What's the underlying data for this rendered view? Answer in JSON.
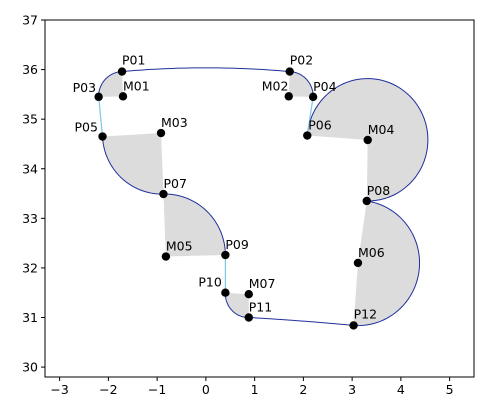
{
  "chart_data": {
    "type": "scatter",
    "title": "",
    "xlabel": "",
    "ylabel": "",
    "xlim": [
      -3.3,
      5.5
    ],
    "ylim": [
      29.8,
      37
    ],
    "grid": false,
    "x_ticks": [
      -3,
      -2,
      -1,
      0,
      1,
      2,
      3,
      4,
      5
    ],
    "x_tick_labels": [
      "−3",
      "−2",
      "−1",
      "0",
      "1",
      "2",
      "3",
      "4",
      "5"
    ],
    "y_ticks": [
      30,
      31,
      32,
      33,
      34,
      35,
      36,
      37
    ],
    "y_tick_labels": [
      "30",
      "31",
      "32",
      "33",
      "34",
      "35",
      "36",
      "37"
    ],
    "points": [
      {
        "label": "P01",
        "x": -1.72,
        "y": 35.96
      },
      {
        "label": "P02",
        "x": 1.72,
        "y": 35.96
      },
      {
        "label": "P03",
        "x": -2.2,
        "y": 35.45
      },
      {
        "label": "P04",
        "x": 2.2,
        "y": 35.45
      },
      {
        "label": "P05",
        "x": -2.12,
        "y": 34.65
      },
      {
        "label": "P06",
        "x": 2.08,
        "y": 34.67
      },
      {
        "label": "P07",
        "x": -0.87,
        "y": 33.49
      },
      {
        "label": "P08",
        "x": 3.3,
        "y": 33.35
      },
      {
        "label": "P09",
        "x": 0.4,
        "y": 32.26
      },
      {
        "label": "P10",
        "x": 0.4,
        "y": 31.5
      },
      {
        "label": "P11",
        "x": 0.88,
        "y": 31.0
      },
      {
        "label": "P12",
        "x": 3.03,
        "y": 30.84
      },
      {
        "label": "M01",
        "x": -1.7,
        "y": 35.46
      },
      {
        "label": "M02",
        "x": 1.7,
        "y": 35.46
      },
      {
        "label": "M03",
        "x": -0.92,
        "y": 34.72
      },
      {
        "label": "M04",
        "x": 3.32,
        "y": 34.58
      },
      {
        "label": "M05",
        "x": -0.82,
        "y": 32.23
      },
      {
        "label": "M06",
        "x": 3.12,
        "y": 32.1
      },
      {
        "label": "M07",
        "x": 0.88,
        "y": 31.47
      }
    ],
    "colors": {
      "arc": "#1f2f9c",
      "straight": "#7ec8e3",
      "fill": "#dcdcdc",
      "marker": "#000000",
      "frame": "#000000",
      "text": "#000000"
    }
  }
}
